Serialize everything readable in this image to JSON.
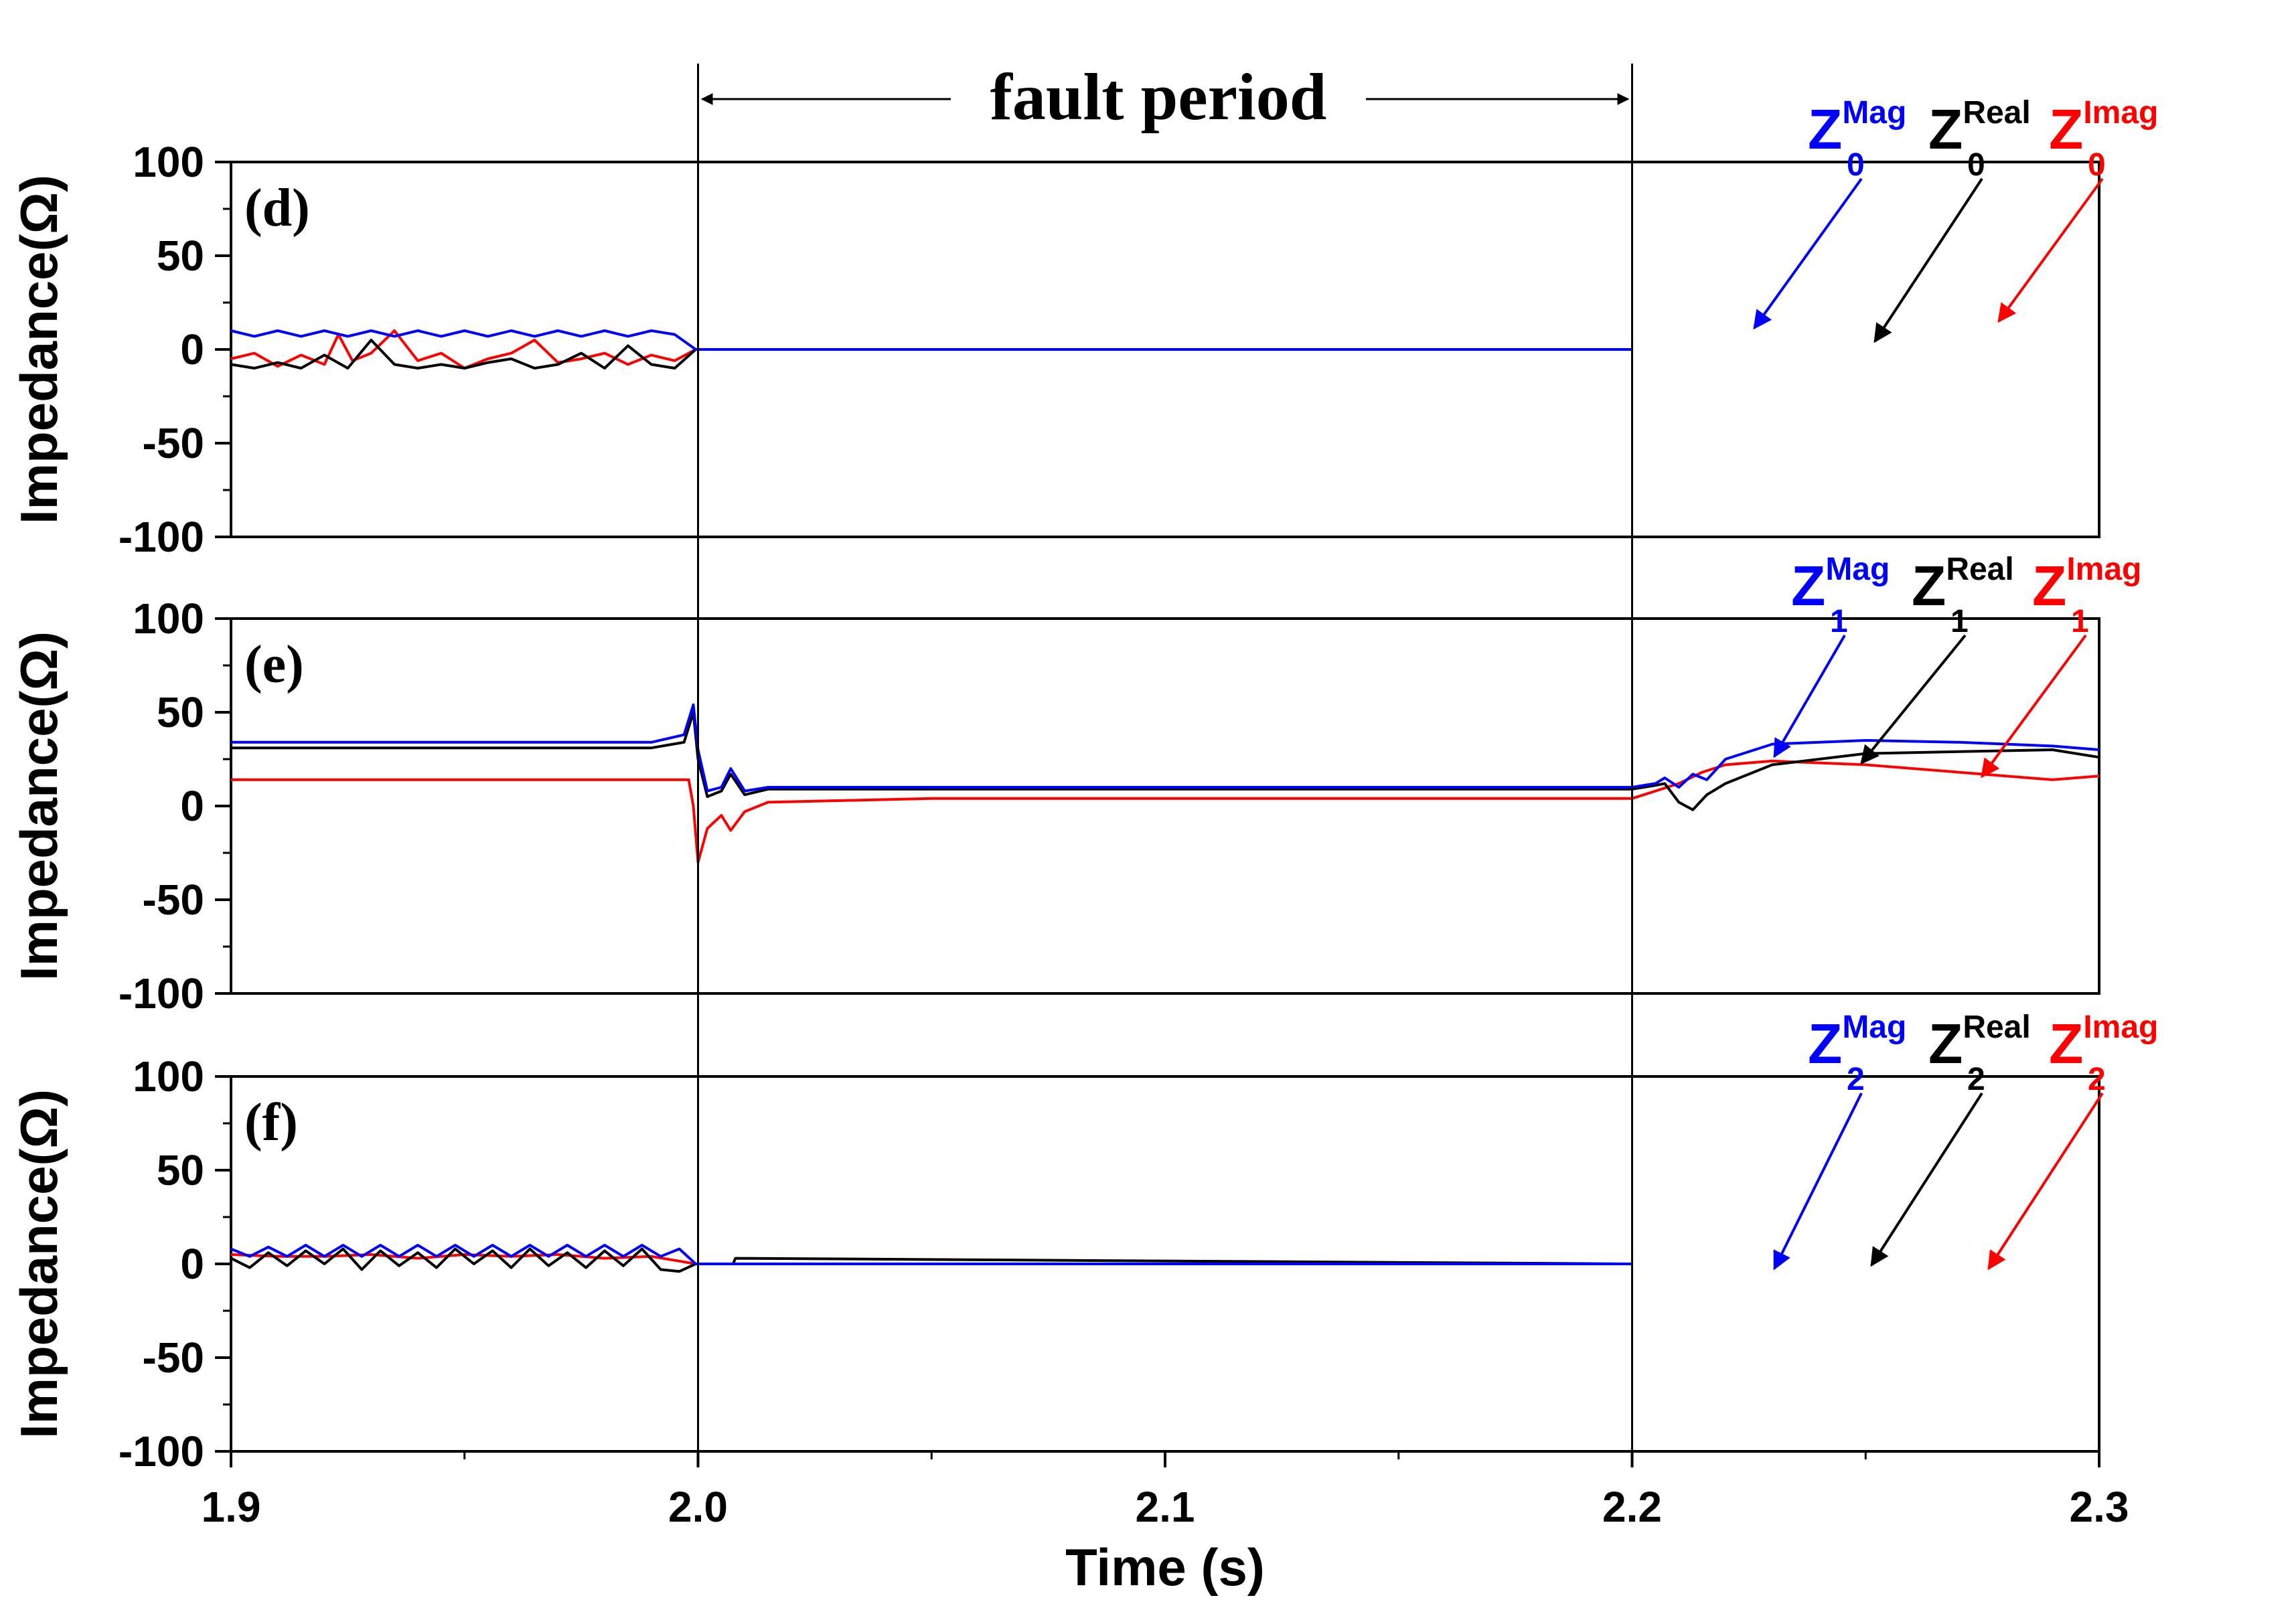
{
  "chart_data": {
    "type": "line",
    "x_axis": {
      "label": "Time (s)",
      "ticks": [
        "1.9",
        "2.0",
        "2.1",
        "2.2",
        "2.3"
      ],
      "range": [
        1.9,
        2.3
      ]
    },
    "annotation": {
      "text": "fault period",
      "start": 2.0,
      "end": 2.2
    },
    "colors": {
      "mag": "#0000ff",
      "real": "#000000",
      "imag": "#ff0000"
    },
    "panels": [
      {
        "label": "(d)",
        "ylabel": "Impedance(Ω)",
        "ylim": [
          -100,
          100
        ],
        "yticks": [
          "100",
          "50",
          "0",
          "-50",
          "-100"
        ],
        "legend": [
          {
            "main": "Z",
            "sub": "0",
            "sup": "Mag",
            "series": "mag"
          },
          {
            "main": "Z",
            "sub": "0",
            "sup": "Real",
            "series": "real"
          },
          {
            "main": "Z",
            "sub": "0",
            "sup": "Imag",
            "series": "imag"
          }
        ],
        "series": [
          {
            "key": "mag",
            "x": [
              1.9,
              1.905,
              1.91,
              1.915,
              1.92,
              1.925,
              1.93,
              1.935,
              1.94,
              1.945,
              1.95,
              1.955,
              1.96,
              1.965,
              1.97,
              1.975,
              1.98,
              1.985,
              1.99,
              1.995,
              1.9995,
              2.0,
              2.2
            ],
            "y": [
              10,
              7,
              10,
              7,
              10,
              7,
              10,
              7,
              10,
              7,
              10,
              7,
              10,
              7,
              10,
              7,
              10,
              7,
              10,
              8,
              0,
              0,
              0
            ]
          },
          {
            "key": "real",
            "x": [
              1.9,
              1.905,
              1.91,
              1.915,
              1.92,
              1.925,
              1.93,
              1.935,
              1.94,
              1.945,
              1.95,
              1.955,
              1.96,
              1.965,
              1.97,
              1.975,
              1.98,
              1.985,
              1.99,
              1.995,
              1.9995,
              2.0,
              2.2
            ],
            "y": [
              -8,
              -10,
              -7,
              -10,
              -3,
              -10,
              5,
              -8,
              -10,
              -8,
              -10,
              -7,
              -5,
              -10,
              -8,
              -2,
              -10,
              2,
              -8,
              -10,
              0,
              0,
              0
            ]
          },
          {
            "key": "imag",
            "x": [
              1.9,
              1.905,
              1.91,
              1.915,
              1.92,
              1.923,
              1.926,
              1.93,
              1.935,
              1.94,
              1.945,
              1.95,
              1.955,
              1.96,
              1.965,
              1.97,
              1.975,
              1.98,
              1.985,
              1.99,
              1.995,
              1.9995,
              2.0,
              2.2
            ],
            "y": [
              -5,
              -2,
              -9,
              -3,
              -8,
              8,
              -6,
              -2,
              10,
              -6,
              -2,
              -10,
              -5,
              -2,
              5,
              -7,
              -5,
              -2,
              -8,
              -3,
              -6,
              0,
              0,
              0
            ]
          }
        ]
      },
      {
        "label": "(e)",
        "ylabel": "Impedance(Ω)",
        "ylim": [
          -100,
          100
        ],
        "yticks": [
          "100",
          "50",
          "0",
          "-50",
          "-100"
        ],
        "legend": [
          {
            "main": "Z",
            "sub": "1",
            "sup": "Mag",
            "series": "mag"
          },
          {
            "main": "Z",
            "sub": "1",
            "sup": "Real",
            "series": "real"
          },
          {
            "main": "Z",
            "sub": "1",
            "sup": "Imag",
            "series": "imag"
          }
        ],
        "series": [
          {
            "key": "mag",
            "x": [
              1.9,
              1.99,
              1.997,
              1.999,
              2.0,
              2.002,
              2.005,
              2.007,
              2.01,
              2.015,
              2.05,
              2.2,
              2.205,
              2.207,
              2.21,
              2.213,
              2.216,
              2.22,
              2.23,
              2.25,
              2.27,
              2.29,
              2.3
            ],
            "y": [
              34,
              34,
              38,
              54,
              30,
              8,
              10,
              20,
              8,
              10,
              10,
              10,
              12,
              15,
              10,
              17,
              14,
              25,
              33,
              35,
              34,
              32,
              30
            ]
          },
          {
            "key": "real",
            "x": [
              1.9,
              1.99,
              1.997,
              1.999,
              2.0,
              2.002,
              2.005,
              2.007,
              2.01,
              2.015,
              2.05,
              2.2,
              2.205,
              2.207,
              2.21,
              2.213,
              2.216,
              2.22,
              2.23,
              2.25,
              2.27,
              2.29,
              2.3
            ],
            "y": [
              31,
              31,
              34,
              50,
              25,
              5,
              8,
              17,
              6,
              9,
              9,
              9,
              11,
              12,
              2,
              -2,
              6,
              12,
              22,
              28,
              29,
              30,
              26
            ]
          },
          {
            "key": "imag",
            "x": [
              1.9,
              1.99,
              1.998,
              1.999,
              2.0,
              2.002,
              2.005,
              2.007,
              2.01,
              2.015,
              2.05,
              2.2,
              2.205,
              2.21,
              2.215,
              2.22,
              2.23,
              2.25,
              2.27,
              2.29,
              2.3
            ],
            "y": [
              14,
              14,
              14,
              0,
              -30,
              -12,
              -5,
              -13,
              -3,
              2,
              4,
              4,
              8,
              12,
              18,
              22,
              24,
              22,
              18,
              14,
              16
            ]
          }
        ]
      },
      {
        "label": "(f)",
        "ylabel": "Impedance(Ω)",
        "ylim": [
          -100,
          100
        ],
        "yticks": [
          "100",
          "50",
          "0",
          "-50",
          "-100"
        ],
        "legend": [
          {
            "main": "Z",
            "sub": "2",
            "sup": "Mag",
            "series": "mag"
          },
          {
            "main": "Z",
            "sub": "2",
            "sup": "Real",
            "series": "real"
          },
          {
            "main": "Z",
            "sub": "2",
            "sup": "Imag",
            "series": "imag"
          }
        ],
        "series": [
          {
            "key": "mag",
            "x": [
              1.9,
              1.904,
              1.908,
              1.912,
              1.916,
              1.92,
              1.924,
              1.928,
              1.932,
              1.936,
              1.94,
              1.944,
              1.948,
              1.952,
              1.956,
              1.96,
              1.964,
              1.968,
              1.972,
              1.976,
              1.98,
              1.984,
              1.988,
              1.992,
              1.996,
              1.9995,
              2.0,
              2.2
            ],
            "y": [
              8,
              4,
              9,
              4,
              10,
              4,
              10,
              4,
              10,
              4,
              10,
              4,
              10,
              4,
              10,
              4,
              10,
              4,
              10,
              4,
              10,
              4,
              10,
              4,
              8,
              0,
              0,
              0
            ]
          },
          {
            "key": "real",
            "x": [
              1.9,
              1.904,
              1.908,
              1.912,
              1.916,
              1.92,
              1.924,
              1.928,
              1.932,
              1.936,
              1.94,
              1.944,
              1.948,
              1.952,
              1.956,
              1.96,
              1.964,
              1.968,
              1.972,
              1.976,
              1.98,
              1.984,
              1.988,
              1.992,
              1.996,
              1.9995,
              2.0,
              2.0075,
              2.008,
              2.2
            ],
            "y": [
              3,
              -2,
              6,
              -1,
              7,
              0,
              8,
              -3,
              7,
              -1,
              6,
              -2,
              8,
              0,
              7,
              -2,
              8,
              -1,
              6,
              -2,
              7,
              -1,
              8,
              -3,
              -4,
              0,
              0,
              0,
              3,
              0
            ]
          },
          {
            "key": "imag",
            "x": [
              1.9,
              1.91,
              1.92,
              1.93,
              1.94,
              1.95,
              1.96,
              1.97,
              1.98,
              1.99,
              1.9995,
              2.0,
              2.2
            ],
            "y": [
              5,
              4,
              4,
              5,
              3,
              5,
              4,
              5,
              3,
              4,
              0,
              0,
              0
            ]
          }
        ]
      }
    ]
  }
}
